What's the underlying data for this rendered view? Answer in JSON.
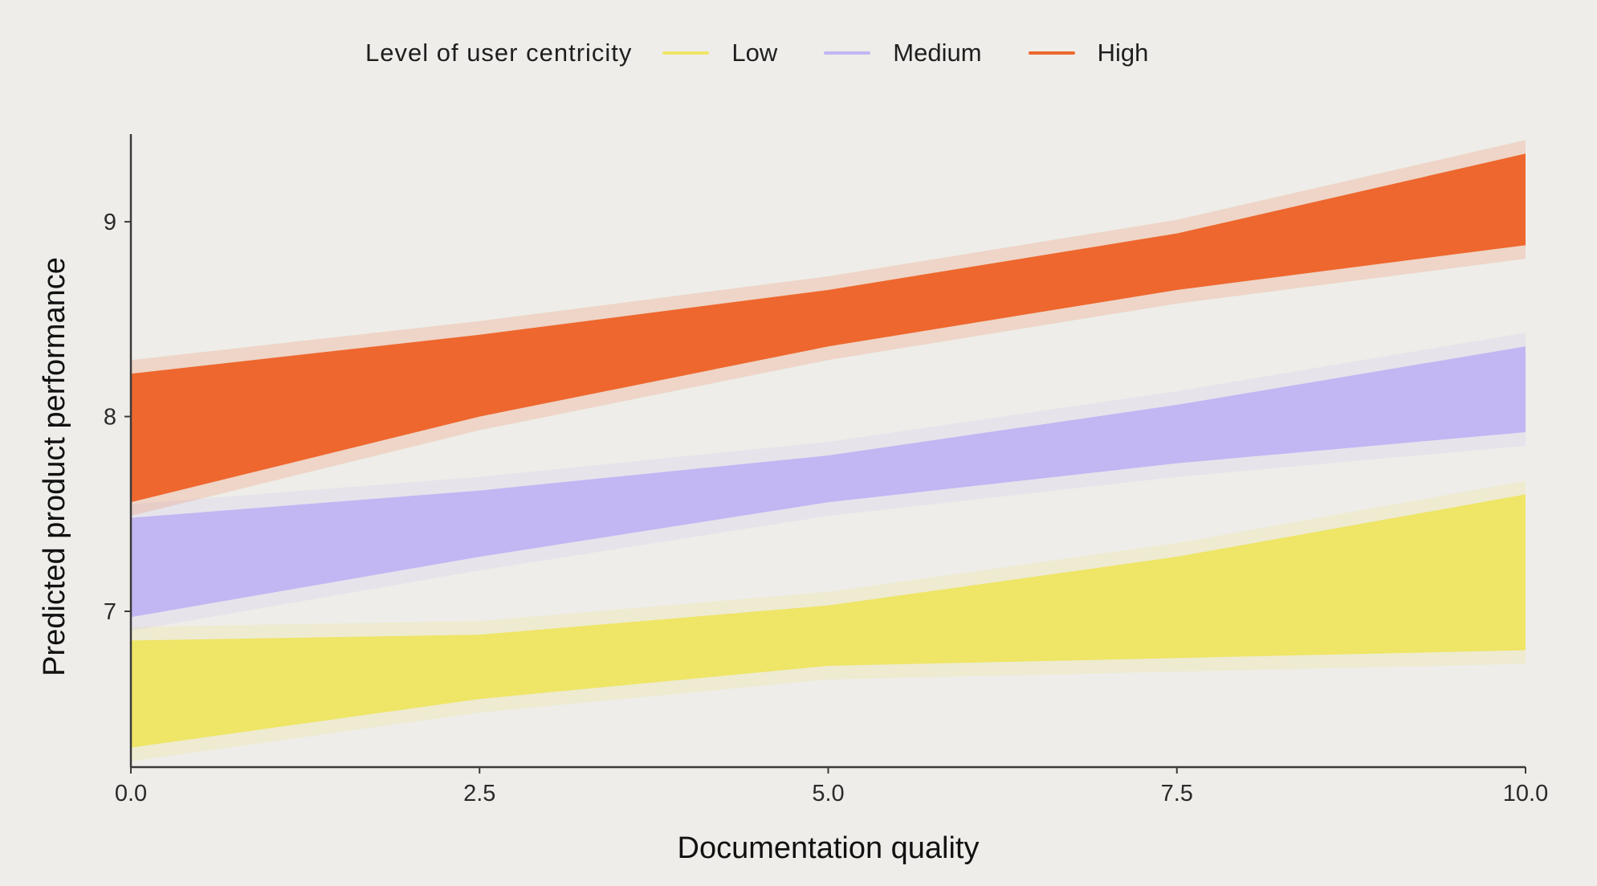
{
  "legend": {
    "title": "Level of user centricity",
    "items": [
      {
        "label": "Low",
        "color": "#EFE566"
      },
      {
        "label": "Medium",
        "color": "#C2B6F3"
      },
      {
        "label": "High",
        "color": "#EE672E"
      }
    ]
  },
  "chart_data": {
    "type": "area",
    "xlabel": "Documentation quality",
    "ylabel": "Predicted product performance",
    "xlim": [
      0,
      10
    ],
    "ylim": [
      6.2,
      9.45
    ],
    "x_ticks": [
      {
        "value": 0,
        "label": "0.0"
      },
      {
        "value": 2.5,
        "label": "2.5"
      },
      {
        "value": 5,
        "label": "5.0"
      },
      {
        "value": 7.5,
        "label": "7.5"
      },
      {
        "value": 10,
        "label": "10.0"
      }
    ],
    "y_ticks": [
      {
        "value": 7,
        "label": "7"
      },
      {
        "value": 8,
        "label": "8"
      },
      {
        "value": 9,
        "label": "9"
      }
    ],
    "grid": false,
    "legend_position": "top",
    "series": [
      {
        "name": "Low",
        "color": "#EFE566",
        "x": [
          0,
          2.5,
          5,
          7.5,
          10
        ],
        "lower": [
          6.3,
          6.55,
          6.72,
          6.76,
          6.8
        ],
        "upper": [
          6.85,
          6.88,
          7.03,
          7.28,
          7.6
        ]
      },
      {
        "name": "Medium",
        "color": "#C2B6F3",
        "x": [
          0,
          2.5,
          5,
          7.5,
          10
        ],
        "lower": [
          6.97,
          7.28,
          7.56,
          7.76,
          7.92
        ],
        "upper": [
          7.48,
          7.62,
          7.8,
          8.06,
          8.36
        ]
      },
      {
        "name": "High",
        "color": "#EE672E",
        "x": [
          0,
          2.5,
          5,
          7.5,
          10
        ],
        "lower": [
          7.56,
          8.0,
          8.36,
          8.65,
          8.88
        ],
        "upper": [
          8.22,
          8.42,
          8.65,
          8.94,
          9.35
        ]
      }
    ]
  }
}
